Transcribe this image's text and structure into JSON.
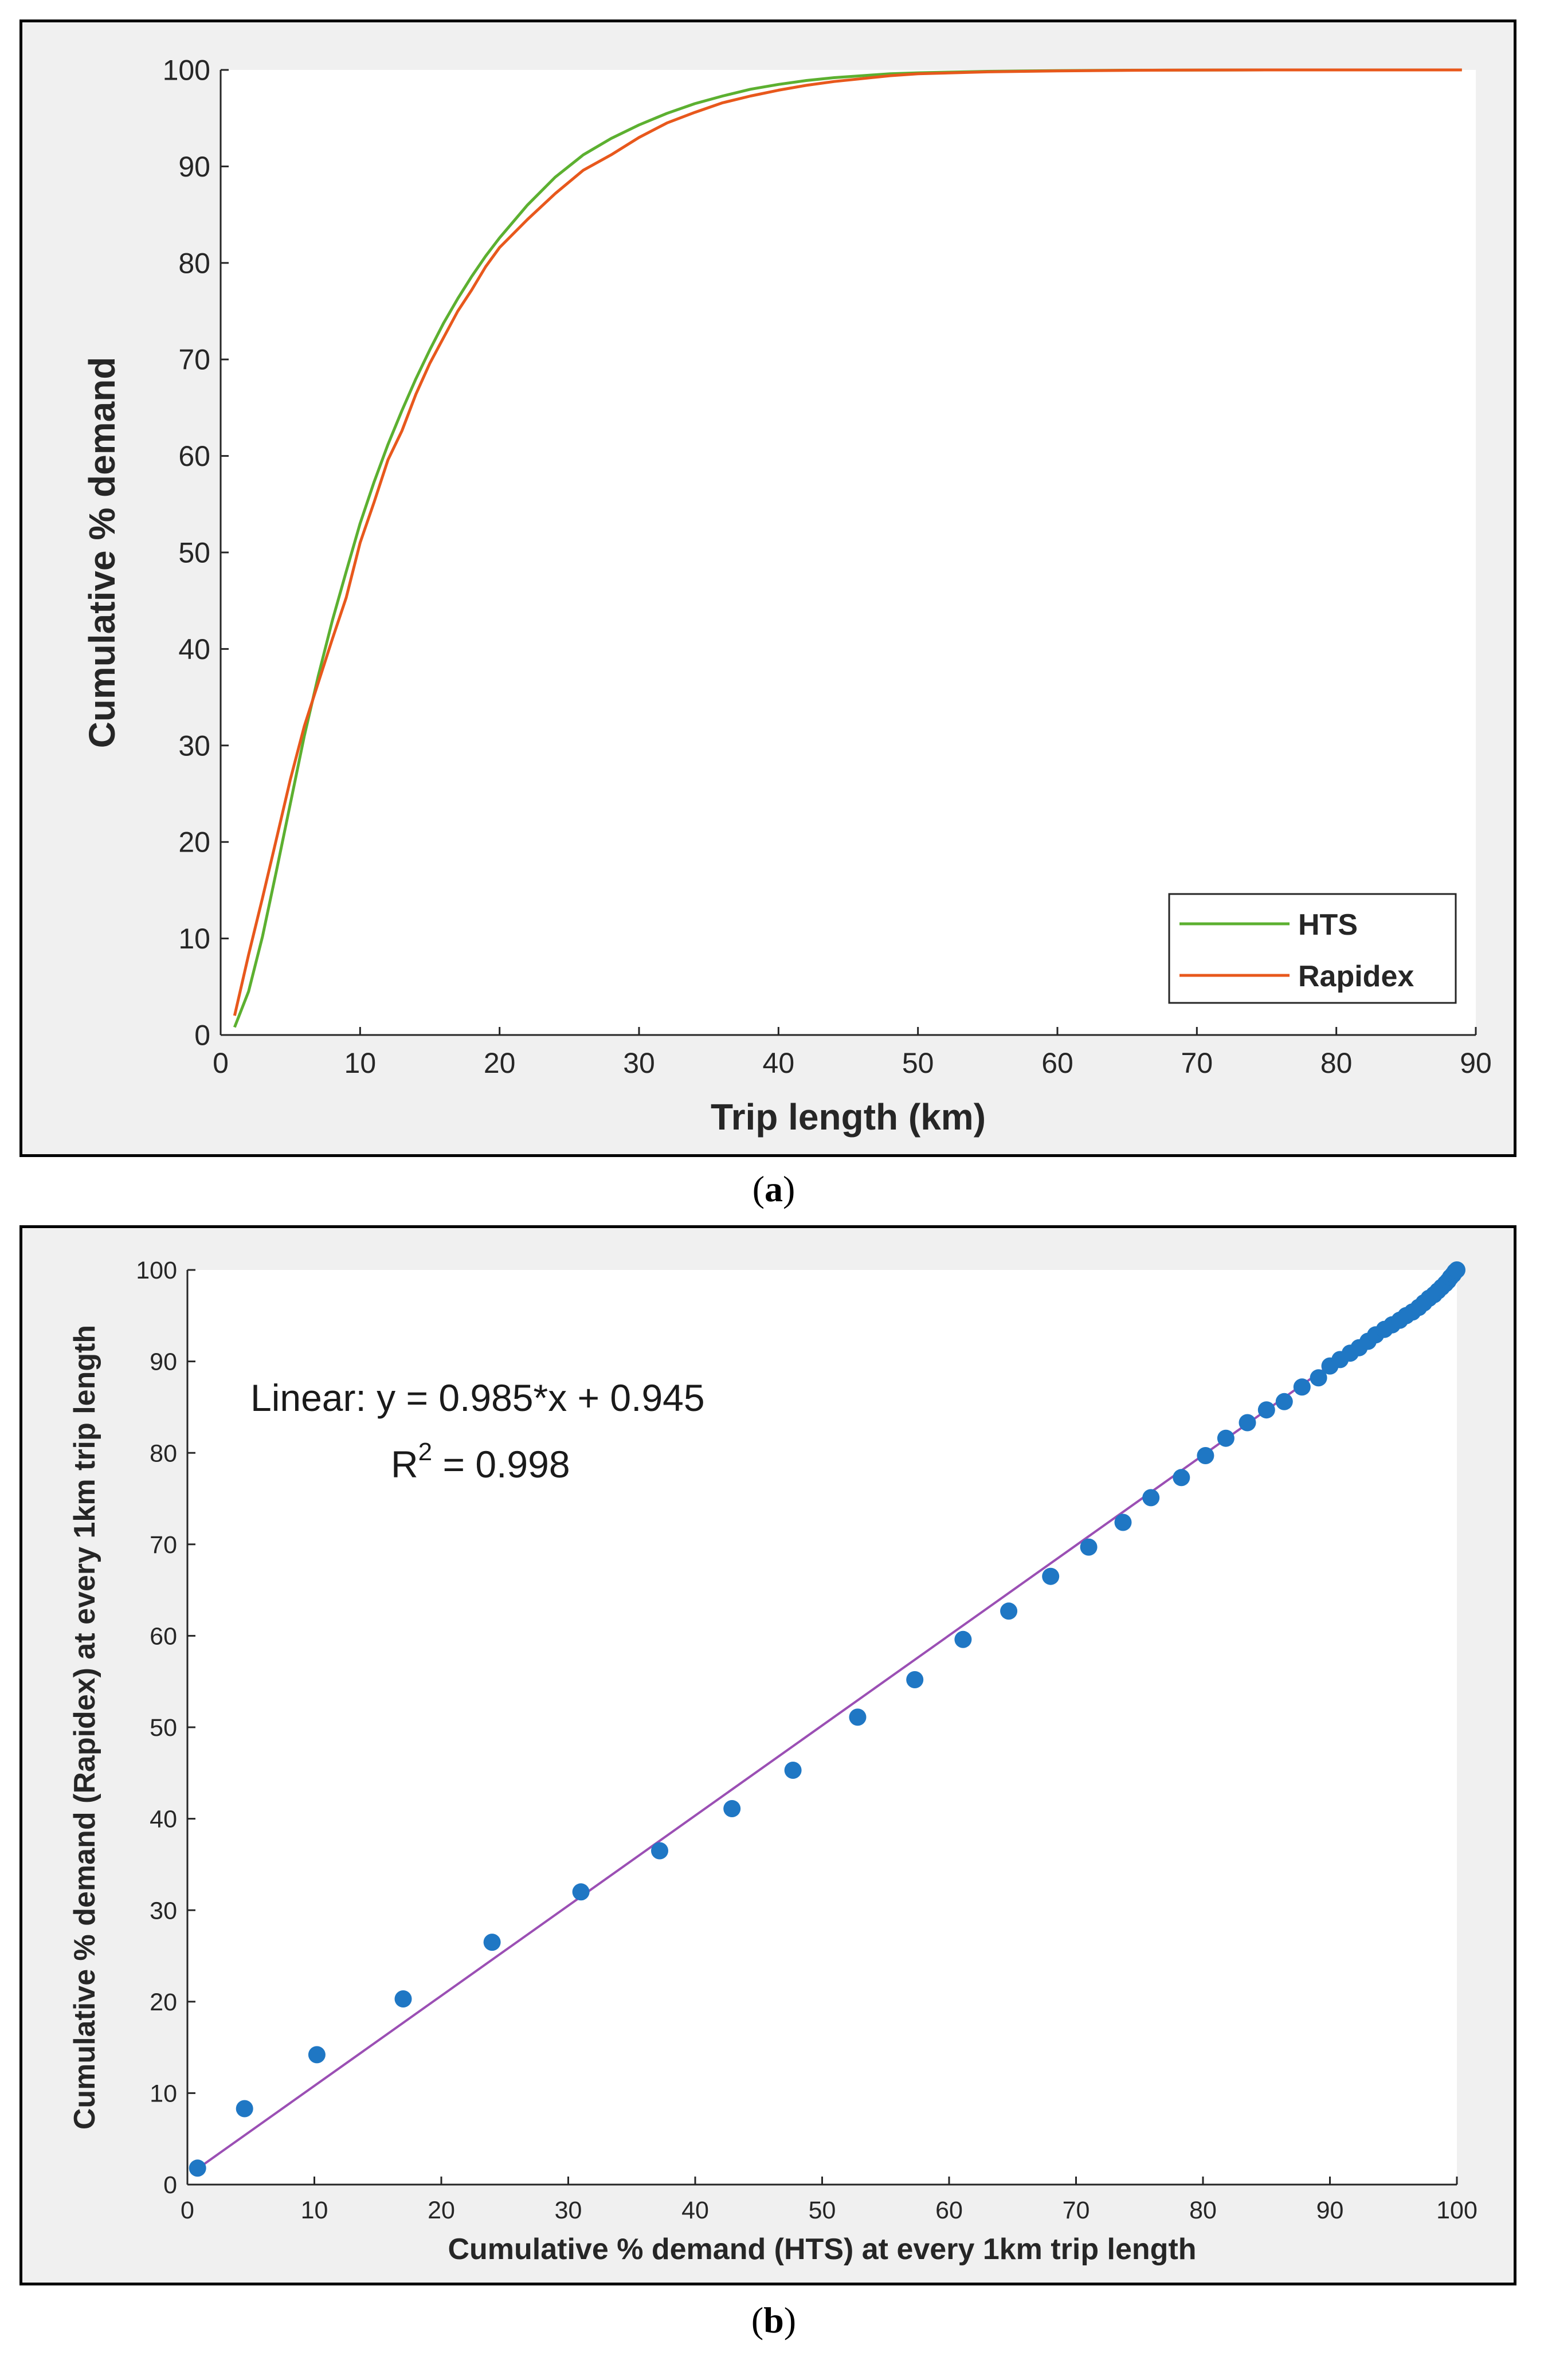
{
  "chart_data": [
    {
      "type": "line",
      "panel_label": "a",
      "title": "",
      "xlabel": "Trip length (km)",
      "ylabel": "Cumulative % demand",
      "xlim": [
        0,
        90
      ],
      "ylim": [
        0,
        100
      ],
      "xticks": [
        0,
        10,
        20,
        30,
        40,
        50,
        60,
        70,
        80,
        90
      ],
      "yticks": [
        0,
        10,
        20,
        30,
        40,
        50,
        60,
        70,
        80,
        90,
        100
      ],
      "grid": false,
      "legend": "bottom-right",
      "series": [
        {
          "name": "HTS",
          "color": "#5cb030",
          "x": [
            1,
            2,
            3,
            4,
            5,
            6,
            7,
            8,
            9,
            10,
            11,
            12,
            13,
            14,
            15,
            16,
            17,
            18,
            19,
            20,
            22,
            24,
            26,
            28,
            30,
            32,
            34,
            36,
            38,
            40,
            42,
            44,
            46,
            48,
            50,
            55,
            60,
            65,
            70,
            75,
            80,
            85,
            89
          ],
          "y": [
            0.8,
            4.5,
            10.2,
            17,
            24,
            31,
            37.2,
            42.9,
            48,
            53,
            57.3,
            61.2,
            64.7,
            68,
            71,
            73.8,
            76.3,
            78.6,
            80.7,
            82.6,
            86,
            88.9,
            91.2,
            92.9,
            94.3,
            95.5,
            96.5,
            97.3,
            98,
            98.5,
            98.9,
            99.2,
            99.4,
            99.6,
            99.7,
            99.85,
            99.93,
            99.97,
            99.99,
            100,
            100,
            100,
            100
          ]
        },
        {
          "name": "Rapidex",
          "color": "#e8581c",
          "x": [
            1,
            2,
            3,
            4,
            5,
            6,
            7,
            8,
            9,
            10,
            11,
            12,
            13,
            14,
            15,
            16,
            17,
            18,
            19,
            20,
            22,
            24,
            26,
            28,
            30,
            32,
            34,
            36,
            38,
            40,
            42,
            44,
            46,
            48,
            50,
            55,
            60,
            65,
            70,
            75,
            80,
            85,
            89
          ],
          "y": [
            2,
            8.3,
            14.2,
            20.3,
            26.5,
            32,
            36.5,
            41,
            45.3,
            51,
            55.2,
            59.6,
            62.6,
            66.4,
            69.6,
            72.3,
            75,
            77.2,
            79.6,
            81.6,
            84.5,
            87.2,
            89.6,
            91.2,
            93,
            94.5,
            95.6,
            96.6,
            97.3,
            97.9,
            98.4,
            98.8,
            99.1,
            99.4,
            99.6,
            99.8,
            99.9,
            99.96,
            99.99,
            100,
            100,
            100,
            100
          ]
        }
      ]
    },
    {
      "type": "scatter",
      "panel_label": "b",
      "title": "",
      "xlabel": "Cumulative % demand (HTS) at every 1km trip length",
      "ylabel": "Cumulative % demand (Rapidex) at every 1km trip length",
      "xlim": [
        0,
        100
      ],
      "ylim": [
        0,
        100
      ],
      "xticks": [
        0,
        10,
        20,
        30,
        40,
        50,
        60,
        70,
        80,
        90,
        100
      ],
      "yticks": [
        0,
        10,
        20,
        30,
        40,
        50,
        60,
        70,
        80,
        90,
        100
      ],
      "grid": false,
      "annotation_line1": "Linear:  y = 0.985*x + 0.945",
      "annotation_r2_prefix": "R",
      "annotation_r2_sup": "2",
      "annotation_r2_value": " = 0.998",
      "fit": {
        "slope": 0.985,
        "intercept": 0.945,
        "x_range": [
          0.8,
          100
        ],
        "color": "#9b4fb4"
      },
      "series": [
        {
          "name": "points",
          "color": "#1f77c4",
          "x": [
            0.8,
            4.5,
            10.2,
            17,
            24,
            31,
            37.2,
            42.9,
            47.7,
            52.8,
            57.3,
            61.1,
            64.7,
            68,
            71,
            73.7,
            75.9,
            78.3,
            80.2,
            81.8,
            83.5,
            85,
            86.4,
            87.8,
            89.1,
            90,
            90.8,
            91.6,
            92.3,
            93,
            93.6,
            94.3,
            94.9,
            95.5,
            96,
            96.5,
            97,
            97.4,
            97.8,
            98.2,
            98.5,
            98.8,
            99.1,
            99.3,
            99.5,
            99.7,
            99.85,
            100
          ],
          "y": [
            1.8,
            8.3,
            14.2,
            20.3,
            26.5,
            32,
            36.5,
            41.1,
            45.3,
            51.1,
            55.2,
            59.6,
            62.7,
            66.5,
            69.7,
            72.4,
            75.1,
            77.3,
            79.7,
            81.6,
            83.3,
            84.7,
            85.6,
            87.2,
            88.2,
            89.5,
            90.2,
            90.9,
            91.5,
            92.2,
            92.9,
            93.5,
            94,
            94.5,
            95,
            95.4,
            95.9,
            96.4,
            96.9,
            97.3,
            97.7,
            98.1,
            98.5,
            98.8,
            99.2,
            99.5,
            99.8,
            100
          ]
        }
      ]
    }
  ]
}
